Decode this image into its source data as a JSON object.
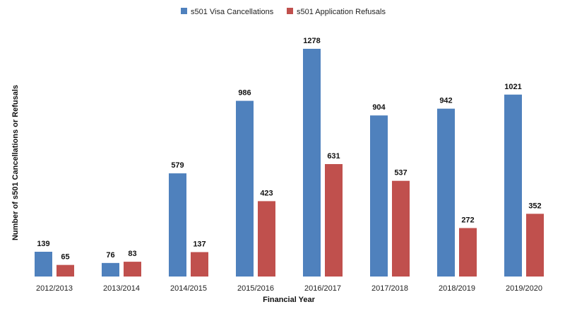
{
  "chart_data": {
    "type": "bar",
    "title": "",
    "xlabel": "Financial Year",
    "ylabel": "Number of s501 Cancellations or Refusals",
    "categories": [
      "2012/2013",
      "2013/2014",
      "2014/2015",
      "2015/2016",
      "2016/2017",
      "2017/2018",
      "2018/2019",
      "2019/2020"
    ],
    "series": [
      {
        "name": "s501 Visa Cancellations",
        "color": "#4F81BD",
        "values": [
          139,
          76,
          579,
          986,
          1278,
          904,
          942,
          1021
        ]
      },
      {
        "name": "s501 Application Refusals",
        "color": "#C0504D",
        "values": [
          65,
          83,
          137,
          423,
          631,
          537,
          272,
          352
        ]
      }
    ],
    "ylim": [
      0,
      1278
    ],
    "grid": false,
    "legend": "top",
    "data_labels": true
  }
}
